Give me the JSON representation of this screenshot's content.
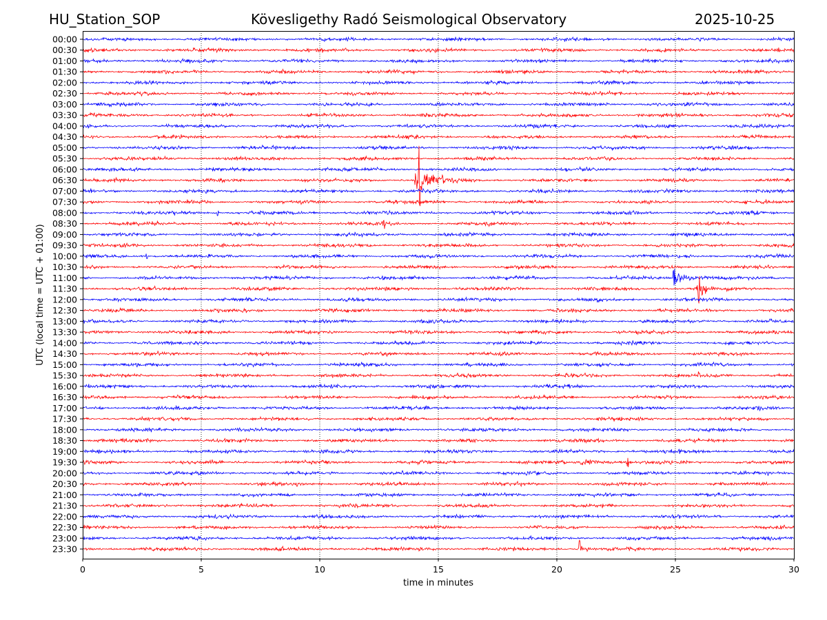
{
  "header": {
    "station": "HU_Station_SOP",
    "title": "Kövesligethy Radó Seismological Observatory",
    "date": "2025-10-25"
  },
  "chart_data": {
    "type": "line",
    "subtype": "helicorder",
    "xlabel": "time in minutes",
    "ylabel": "UTC (local time = UTC + 01:00)",
    "xlim": [
      0,
      30
    ],
    "xticks": [
      0,
      5,
      10,
      15,
      20,
      25,
      30
    ],
    "grid": "vertical dotted at x ticks",
    "row_labels": [
      "00:00",
      "00:30",
      "01:00",
      "01:30",
      "02:00",
      "02:30",
      "03:00",
      "03:30",
      "04:00",
      "04:30",
      "05:00",
      "05:30",
      "06:00",
      "06:30",
      "07:00",
      "07:30",
      "08:00",
      "08:30",
      "09:00",
      "09:30",
      "10:00",
      "10:30",
      "11:00",
      "11:30",
      "12:00",
      "12:30",
      "13:00",
      "13:30",
      "14:00",
      "14:30",
      "15:00",
      "15:30",
      "16:00",
      "16:30",
      "17:00",
      "17:30",
      "18:00",
      "18:30",
      "19:00",
      "19:30",
      "20:00",
      "20:30",
      "21:00",
      "21:30",
      "22:00",
      "22:30",
      "23:00",
      "23:30"
    ],
    "colors": [
      "#0000ff",
      "#ff0000"
    ],
    "background_amplitude": 1,
    "events": [
      {
        "row": "06:30",
        "start_min": 14.0,
        "end_min": 16.8,
        "peak_amplitude": 18,
        "spike_min": 14.2
      },
      {
        "row": "08:00",
        "start_min": 3.5,
        "end_min": 6.0,
        "peak_amplitude": 2.2,
        "spike_min": 5.7
      },
      {
        "row": "08:30",
        "start_min": 12.6,
        "end_min": 13.0,
        "peak_amplitude": 3,
        "spike_min": 12.7
      },
      {
        "row": "10:00",
        "start_min": 0.3,
        "end_min": 3.0,
        "peak_amplitude": 2,
        "spike_min": 2.7
      },
      {
        "row": "11:00",
        "start_min": 24.9,
        "end_min": 27.2,
        "peak_amplitude": 8,
        "spike_min": 24.95
      },
      {
        "row": "11:30",
        "start_min": 25.9,
        "end_min": 27.0,
        "peak_amplitude": 11,
        "spike_min": 26.0
      },
      {
        "row": "13:00",
        "start_min": 28.0,
        "end_min": 30.0,
        "peak_amplitude": 1.6,
        "spike_min": 29.0
      },
      {
        "row": "15:30",
        "start_min": 25.8,
        "end_min": 26.3,
        "peak_amplitude": 2,
        "spike_min": 26.0
      },
      {
        "row": "19:30",
        "start_min": 21.0,
        "end_min": 24.8,
        "peak_amplitude": 3.5,
        "spike_min": 23.0
      },
      {
        "row": "23:30",
        "start_min": 20.9,
        "end_min": 22.0,
        "peak_amplitude": 5,
        "spike_min": 20.95
      }
    ]
  }
}
